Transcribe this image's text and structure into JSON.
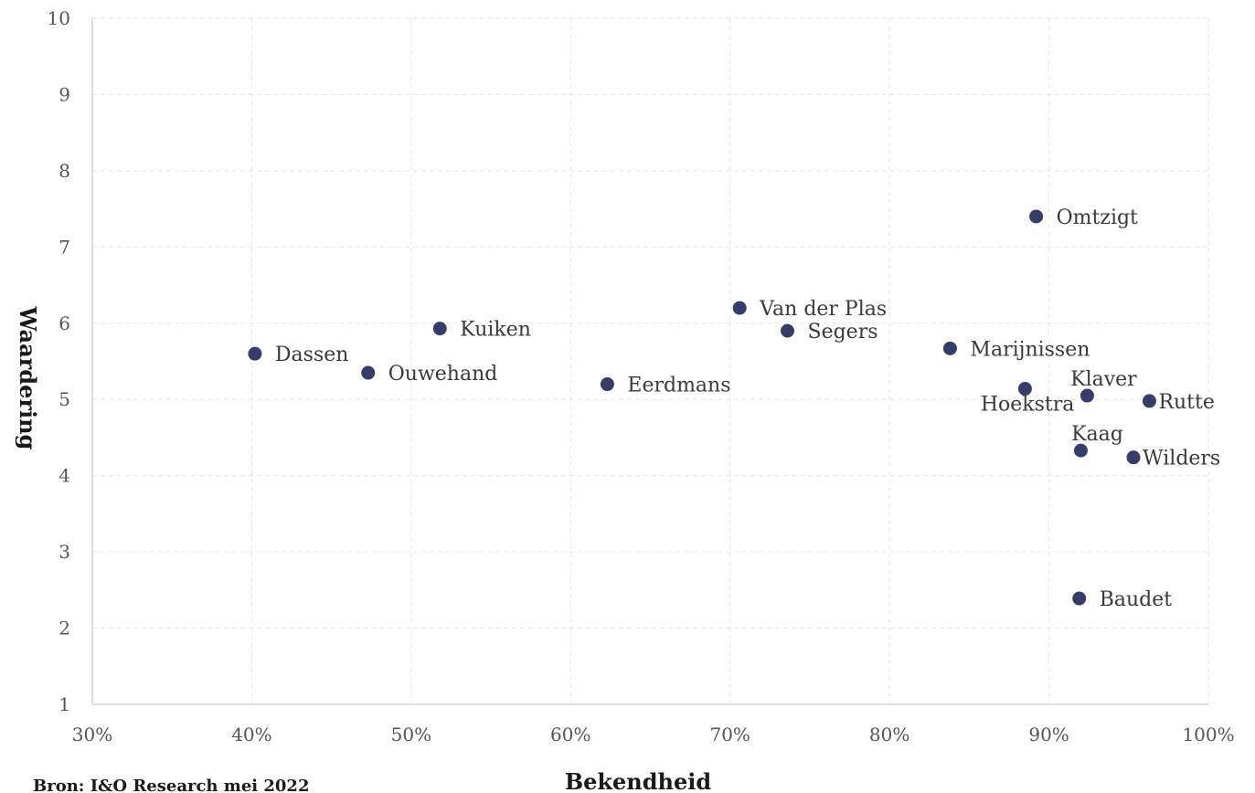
{
  "chart_data": {
    "type": "scatter",
    "xlabel": "Bekendheid",
    "ylabel": "Waardering",
    "xlim": [
      30,
      100
    ],
    "ylim": [
      1,
      10
    ],
    "x_ticks": [
      "30%",
      "40%",
      "50%",
      "60%",
      "70%",
      "80%",
      "90%",
      "100%"
    ],
    "y_ticks": [
      "1",
      "2",
      "3",
      "4",
      "5",
      "6",
      "7",
      "8",
      "9",
      "10"
    ],
    "grid": true,
    "marker_color": "#363d6a",
    "source": "Bron: I&O Research mei 2022",
    "points": [
      {
        "label": "Dassen",
        "x": 40.2,
        "y": 5.6,
        "label_pos": "right"
      },
      {
        "label": "Ouwehand",
        "x": 47.3,
        "y": 5.35,
        "label_pos": "right"
      },
      {
        "label": "Kuiken",
        "x": 51.8,
        "y": 5.93,
        "label_pos": "right"
      },
      {
        "label": "Eerdmans",
        "x": 62.3,
        "y": 5.2,
        "label_pos": "right"
      },
      {
        "label": "Van der Plas",
        "x": 70.6,
        "y": 6.2,
        "label_pos": "right"
      },
      {
        "label": "Segers",
        "x": 73.6,
        "y": 5.9,
        "label_pos": "right"
      },
      {
        "label": "Marijnissen",
        "x": 83.8,
        "y": 5.67,
        "label_pos": "right"
      },
      {
        "label": "Omtzigt",
        "x": 89.2,
        "y": 7.4,
        "label_pos": "right"
      },
      {
        "label": "Hoekstra",
        "x": 88.5,
        "y": 5.14,
        "label_pos": "below-left"
      },
      {
        "label": "Klaver",
        "x": 92.4,
        "y": 5.05,
        "label_pos": "above"
      },
      {
        "label": "Rutte",
        "x": 96.3,
        "y": 4.98,
        "label_pos": "right"
      },
      {
        "label": "Kaag",
        "x": 92.0,
        "y": 4.33,
        "label_pos": "above"
      },
      {
        "label": "Wilders",
        "x": 95.3,
        "y": 4.24,
        "label_pos": "right"
      },
      {
        "label": "Baudet",
        "x": 91.9,
        "y": 2.39,
        "label_pos": "right"
      }
    ]
  }
}
